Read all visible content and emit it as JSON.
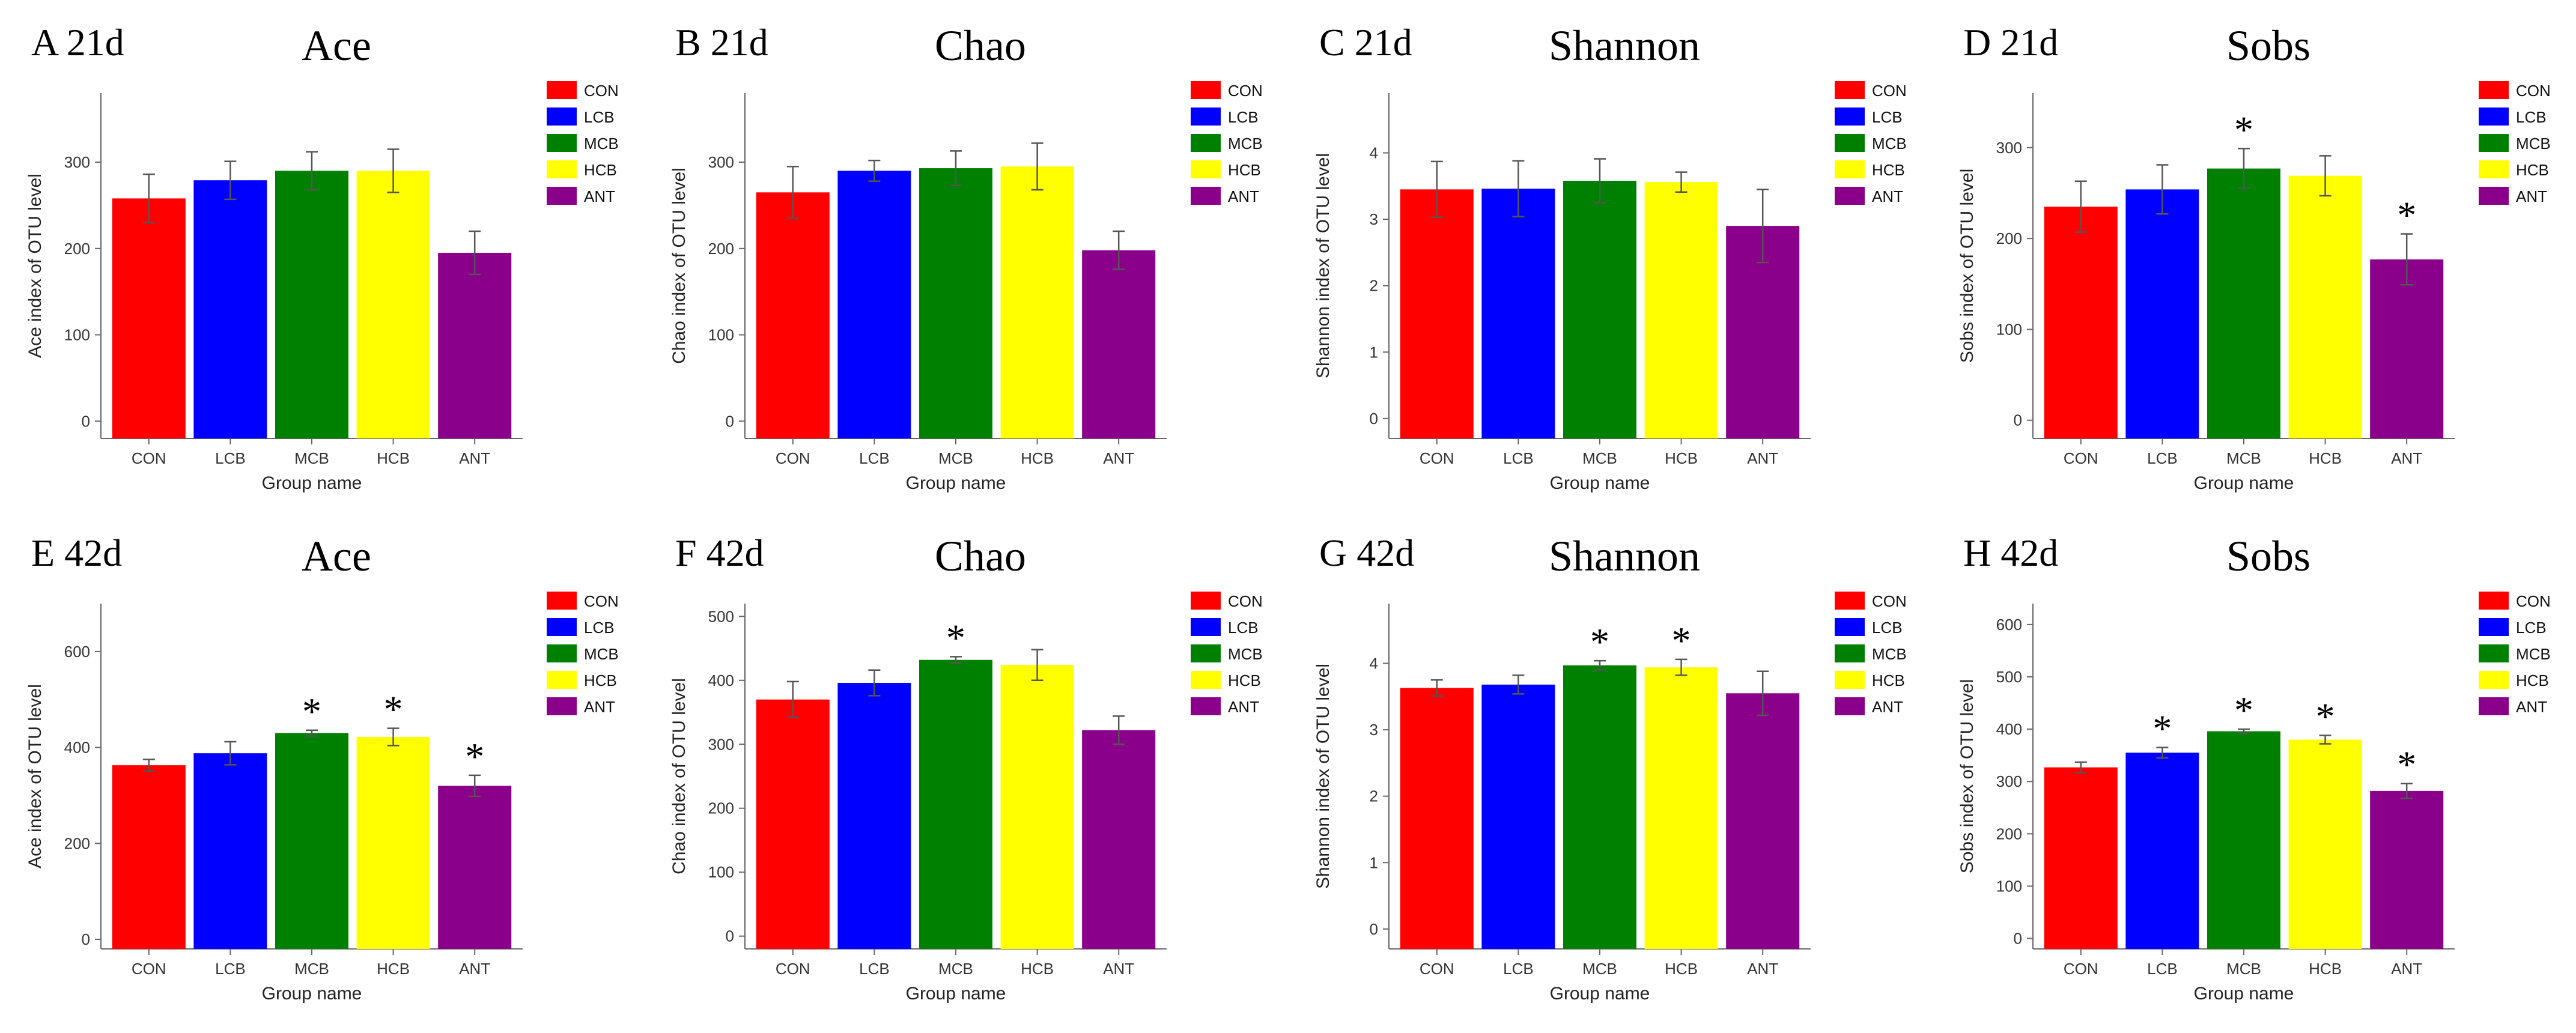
{
  "categories": [
    "CON",
    "LCB",
    "MCB",
    "HCB",
    "ANT"
  ],
  "colors": {
    "CON": "#ff0000",
    "LCB": "#0000ff",
    "MCB": "#008000",
    "HCB": "#ffff00",
    "ANT": "#8b008b"
  },
  "chart_data": [
    {
      "type": "bar",
      "label": "A 21d",
      "title": "Ace",
      "xlabel": "Group name",
      "ylabel": "Ace index of OTU level",
      "categories": [
        "CON",
        "LCB",
        "MCB",
        "HCB",
        "ANT"
      ],
      "values": [
        258,
        279,
        290,
        290,
        195
      ],
      "errors": [
        28,
        22,
        22,
        25,
        25
      ],
      "significant": [
        false,
        false,
        false,
        false,
        false
      ],
      "ylim": [
        -20,
        380
      ],
      "yticks": [
        0,
        100,
        200,
        300
      ],
      "legend": [
        "CON",
        "LCB",
        "MCB",
        "HCB",
        "ANT"
      ]
    },
    {
      "type": "bar",
      "label": "B 21d",
      "title": "Chao",
      "xlabel": "Group name",
      "ylabel": "Chao index of OTU level",
      "categories": [
        "CON",
        "LCB",
        "MCB",
        "HCB",
        "ANT"
      ],
      "values": [
        265,
        290,
        293,
        295,
        198
      ],
      "errors": [
        30,
        12,
        20,
        27,
        22
      ],
      "significant": [
        false,
        false,
        false,
        false,
        false
      ],
      "ylim": [
        -20,
        380
      ],
      "yticks": [
        0,
        100,
        200,
        300
      ],
      "legend": [
        "CON",
        "LCB",
        "MCB",
        "HCB",
        "ANT"
      ]
    },
    {
      "type": "bar",
      "label": "C 21d",
      "title": "Shannon",
      "xlabel": "Group name",
      "ylabel": "Shannon index of OTU level",
      "categories": [
        "CON",
        "LCB",
        "MCB",
        "HCB",
        "ANT"
      ],
      "values": [
        3.45,
        3.46,
        3.58,
        3.56,
        2.9
      ],
      "errors": [
        0.42,
        0.42,
        0.33,
        0.15,
        0.55
      ],
      "significant": [
        false,
        false,
        false,
        false,
        false
      ],
      "ylim": [
        -0.3,
        4.9
      ],
      "yticks": [
        0,
        1,
        2,
        3,
        4
      ],
      "legend": [
        "CON",
        "LCB",
        "MCB",
        "HCB",
        "ANT"
      ]
    },
    {
      "type": "bar",
      "label": "D 21d",
      "title": "Sobs",
      "xlabel": "Group name",
      "ylabel": "Sobs index of OTU level",
      "categories": [
        "CON",
        "LCB",
        "MCB",
        "HCB",
        "ANT"
      ],
      "values": [
        235,
        254,
        277,
        269,
        177
      ],
      "errors": [
        28,
        27,
        22,
        22,
        28
      ],
      "significant": [
        false,
        false,
        true,
        false,
        true
      ],
      "ylim": [
        -20,
        360
      ],
      "yticks": [
        0,
        100,
        200,
        300
      ],
      "legend": [
        "CON",
        "LCB",
        "MCB",
        "HCB",
        "ANT"
      ]
    },
    {
      "type": "bar",
      "label": "E 42d",
      "title": "Ace",
      "xlabel": "Group name",
      "ylabel": "Ace index of OTU level",
      "categories": [
        "CON",
        "LCB",
        "MCB",
        "HCB",
        "ANT"
      ],
      "values": [
        363,
        388,
        430,
        422,
        320
      ],
      "errors": [
        12,
        24,
        6,
        18,
        22
      ],
      "significant": [
        false,
        false,
        true,
        true,
        true
      ],
      "ylim": [
        -20,
        700
      ],
      "yticks": [
        0,
        200,
        400,
        600
      ],
      "legend": [
        "CON",
        "LCB",
        "MCB",
        "HCB",
        "ANT"
      ]
    },
    {
      "type": "bar",
      "label": "F 42d",
      "title": "Chao",
      "xlabel": "Group name",
      "ylabel": "Chao index of OTU level",
      "categories": [
        "CON",
        "LCB",
        "MCB",
        "HCB",
        "ANT"
      ],
      "values": [
        370,
        396,
        432,
        424,
        322
      ],
      "errors": [
        28,
        20,
        5,
        24,
        22
      ],
      "significant": [
        false,
        false,
        true,
        false,
        false
      ],
      "ylim": [
        -20,
        520
      ],
      "yticks": [
        0,
        100,
        200,
        300,
        400,
        500
      ],
      "legend": [
        "CON",
        "LCB",
        "MCB",
        "HCB",
        "ANT"
      ]
    },
    {
      "type": "bar",
      "label": "G 42d",
      "title": "Shannon",
      "xlabel": "Group name",
      "ylabel": "Shannon index of OTU level",
      "categories": [
        "CON",
        "LCB",
        "MCB",
        "HCB",
        "ANT"
      ],
      "values": [
        3.63,
        3.68,
        3.97,
        3.94,
        3.55
      ],
      "errors": [
        0.12,
        0.14,
        0.07,
        0.12,
        0.33
      ],
      "significant": [
        false,
        false,
        true,
        true,
        false
      ],
      "ylim": [
        -0.3,
        4.9
      ],
      "yticks": [
        0,
        1,
        2,
        3,
        4
      ],
      "legend": [
        "CON",
        "LCB",
        "MCB",
        "HCB",
        "ANT"
      ]
    },
    {
      "type": "bar",
      "label": "H 42d",
      "title": "Sobs",
      "xlabel": "Group name",
      "ylabel": "Sobs index of OTU level",
      "categories": [
        "CON",
        "LCB",
        "MCB",
        "HCB",
        "ANT"
      ],
      "values": [
        327,
        355,
        396,
        380,
        282
      ],
      "errors": [
        10,
        10,
        4,
        8,
        14
      ],
      "significant": [
        false,
        true,
        true,
        true,
        true
      ],
      "ylim": [
        -20,
        640
      ],
      "yticks": [
        0,
        100,
        200,
        300,
        400,
        500,
        600
      ],
      "legend": [
        "CON",
        "LCB",
        "MCB",
        "HCB",
        "ANT"
      ]
    }
  ]
}
